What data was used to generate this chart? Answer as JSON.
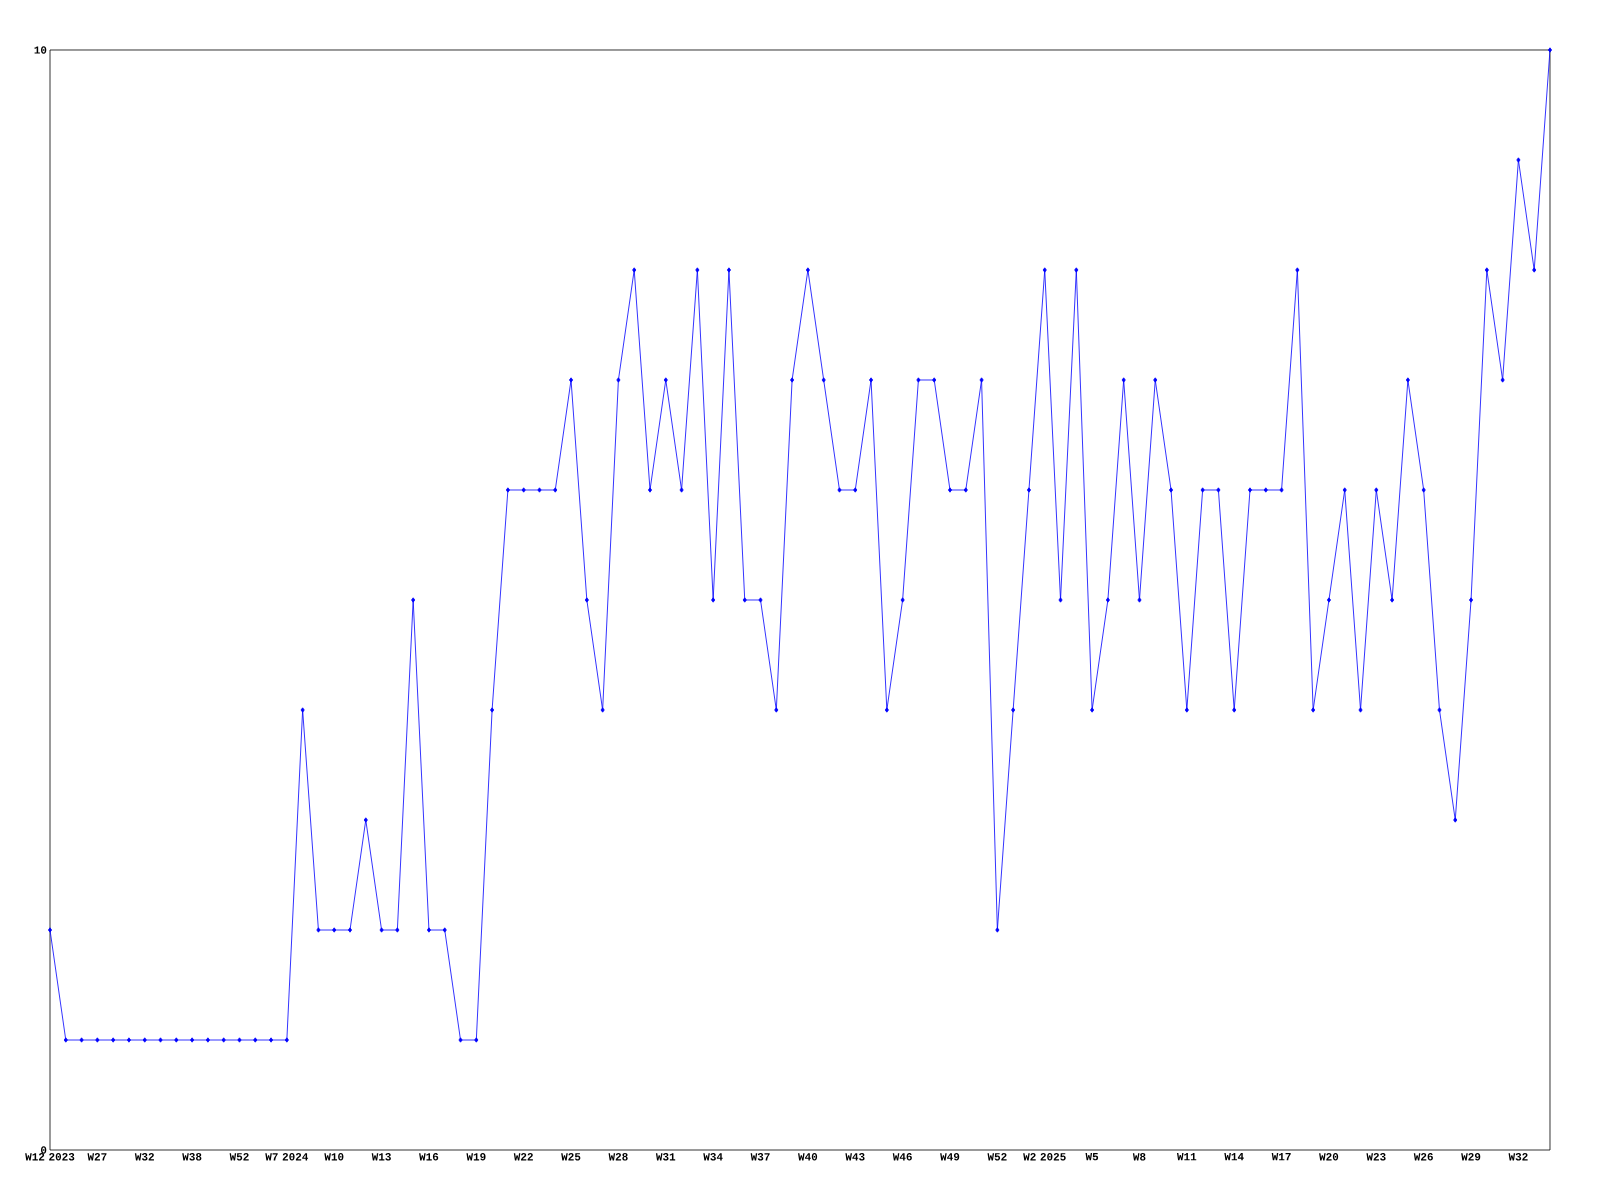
{
  "chart_data": {
    "type": "line",
    "categories": [
      "W12 2023",
      null,
      null,
      "W27",
      null,
      null,
      "W32",
      null,
      null,
      "W38",
      null,
      null,
      "W52",
      null,
      null,
      "W7 2024",
      null,
      null,
      "W10",
      null,
      null,
      "W13",
      null,
      null,
      "W16",
      null,
      null,
      "W19",
      null,
      null,
      "W22",
      null,
      null,
      "W25",
      null,
      null,
      "W28",
      null,
      null,
      "W31",
      null,
      null,
      "W34",
      null,
      null,
      "W37",
      null,
      null,
      "W40",
      null,
      null,
      "W43",
      null,
      null,
      "W46",
      null,
      null,
      "W49",
      null,
      null,
      "W52",
      null,
      null,
      "W2 2025",
      null,
      null,
      "W5",
      null,
      null,
      "W8",
      null,
      null,
      "W11",
      null,
      null,
      "W14",
      null,
      null,
      "W17",
      null,
      null,
      "W20",
      null,
      null,
      "W23",
      null,
      null,
      "W26",
      null,
      null,
      "W29",
      null,
      null,
      "W32",
      null,
      null
    ],
    "series": [
      {
        "color": "#0000ff",
        "values": [
          2,
          1,
          1,
          1,
          1,
          1,
          1,
          1,
          1,
          1,
          1,
          1,
          1,
          1,
          1,
          1,
          4,
          2,
          2,
          2,
          3,
          2,
          2,
          5,
          2,
          2,
          1,
          1,
          4,
          6,
          6,
          6,
          6,
          7,
          5,
          4,
          7,
          8,
          6,
          7,
          6,
          8,
          5,
          8,
          5,
          5,
          4,
          7,
          8,
          7,
          6,
          6,
          7,
          4,
          5,
          7,
          7,
          6,
          6,
          7,
          2,
          4,
          6,
          8,
          5,
          8,
          4,
          5,
          7,
          5,
          7,
          6,
          4,
          6,
          6,
          4,
          6,
          6,
          6,
          8,
          4,
          5,
          6,
          4,
          6,
          5,
          7,
          6,
          4,
          3,
          5,
          8,
          7,
          9,
          8,
          10
        ]
      }
    ],
    "ylim": [
      0,
      10
    ],
    "yticks": [
      0,
      10
    ],
    "marker": "diamond",
    "line_style": "solid"
  }
}
